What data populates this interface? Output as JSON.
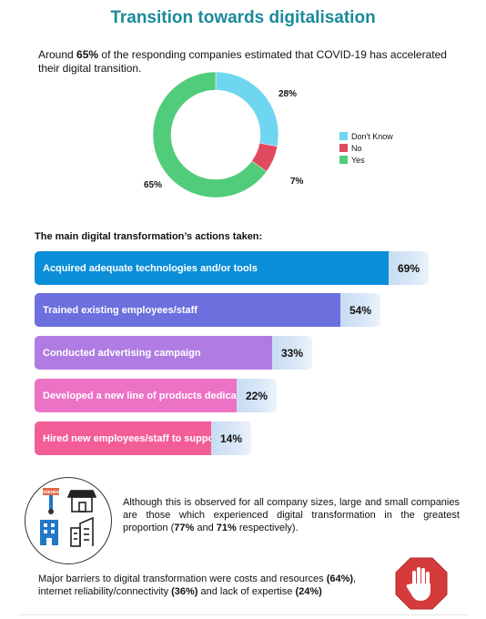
{
  "header": {
    "title": "Transition towards digitalisation"
  },
  "intro": {
    "pre": "Around ",
    "highlight": "65%",
    "post": " of the responding companies estimated that COVID-19 has accelerated their digital transition."
  },
  "donut": {
    "labels": {
      "dont_know": "28%",
      "no": "7%",
      "yes": "65%"
    },
    "legend": [
      {
        "label": "Don't Know",
        "color": "#6fd6ef"
      },
      {
        "label": "No",
        "color": "#e04a5f"
      },
      {
        "label": "Yes",
        "color": "#51cc7a"
      }
    ]
  },
  "actions": {
    "heading": "The main digital transformation’s actions taken:"
  },
  "chart_data": [
    {
      "type": "pie",
      "categories": [
        "Don't Know",
        "No",
        "Yes"
      ],
      "values": [
        28,
        7,
        65
      ],
      "colors": [
        "#6fd6ef",
        "#e04a5f",
        "#51cc7a"
      ],
      "donut": true,
      "legend": "right"
    },
    {
      "type": "bar",
      "orientation": "horizontal",
      "categories": [
        "Acquired adequate technologies and/or tools",
        "Trained existing employees/staff",
        "Conducted advertising campaign",
        "Developed a new line of products dedicated for online selling",
        "Hired new employees/staff to support the digital transformation"
      ],
      "values": [
        69,
        54,
        33,
        22,
        14
      ],
      "value_labels": [
        "69%",
        "54%",
        "33%",
        "22%",
        "14%"
      ],
      "colors": [
        "#0a8ed8",
        "#6c6fdd",
        "#b07ce3",
        "#ec72c6",
        "#f25d98"
      ]
    }
  ],
  "note": {
    "pre": "Although this is observed for all company sizes, large and small companies are those which experienced digital transformation in the greatest proportion (",
    "p1": "77%",
    "mid": " and ",
    "p2": "71%",
    "post": " respectively)."
  },
  "barriers": {
    "pre": "Major barriers to digital transformation were costs and resources ",
    "p1": "(64%)",
    "mid1": ", internet reliability/connectivity ",
    "p2": "(36%)",
    "mid2": " and lack of  expertise ",
    "p3": "(24%)"
  },
  "icons": [
    "store-sign-icon",
    "shop-icon",
    "office-building-icon",
    "city-building-icon",
    "stop-hand-icon"
  ],
  "icon_texts": {
    "sign": "TRENDS"
  }
}
